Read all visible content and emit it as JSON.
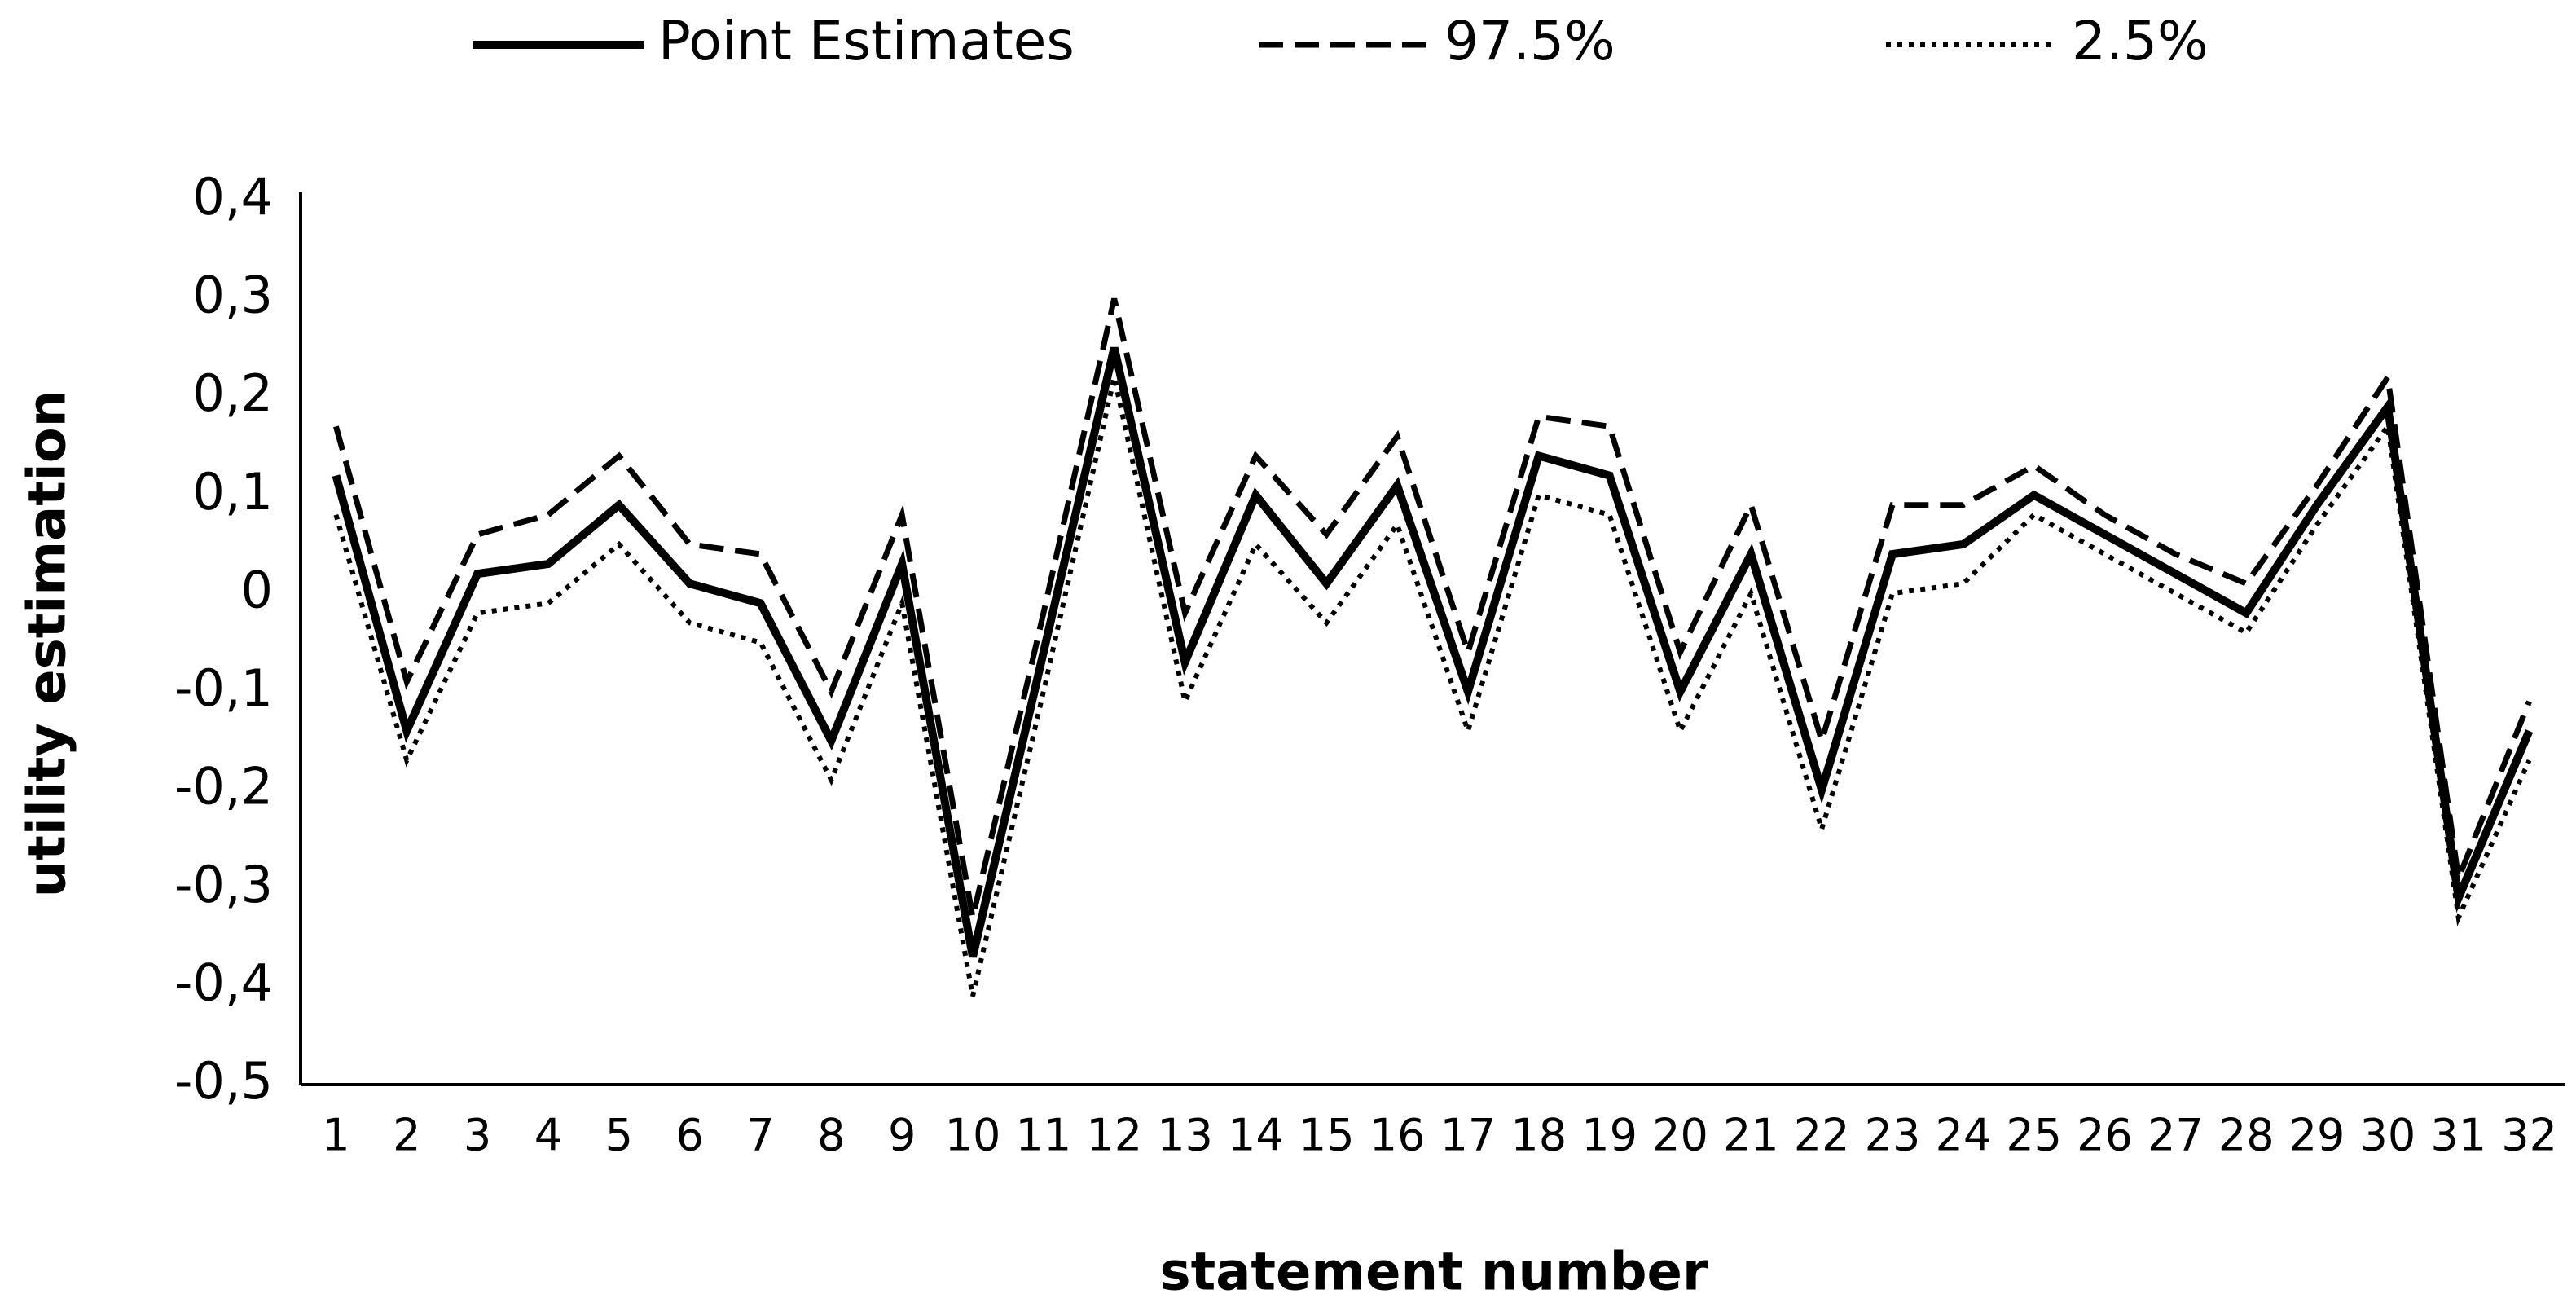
{
  "chart_data": {
    "type": "line",
    "x_label": "statement number",
    "y_label": "utility estimation",
    "categories": [
      "1",
      "2",
      "3",
      "4",
      "5",
      "6",
      "7",
      "8",
      "9",
      "10",
      "11",
      "12",
      "13",
      "14",
      "15",
      "16",
      "17",
      "18",
      "19",
      "20",
      "21",
      "22",
      "23",
      "24",
      "25",
      "26",
      "27",
      "28",
      "29",
      "30",
      "31",
      "32"
    ],
    "series": [
      {
        "name": "Point Estimates",
        "color": "#000000",
        "dash": "solid",
        "values": [
          0.12,
          -0.14,
          0.02,
          0.03,
          0.09,
          0.01,
          -0.01,
          -0.15,
          0.03,
          -0.37,
          -0.06,
          0.25,
          -0.07,
          0.1,
          0.01,
          0.11,
          -0.1,
          0.14,
          0.12,
          -0.1,
          0.04,
          -0.2,
          0.04,
          0.05,
          0.1,
          0.06,
          0.02,
          -0.02,
          0.09,
          0.19,
          -0.31,
          -0.14
        ]
      },
      {
        "name": "97.5%",
        "color": "#000000",
        "dash": "dashed",
        "values": [
          0.17,
          -0.09,
          0.06,
          0.08,
          0.14,
          0.05,
          0.04,
          -0.1,
          0.08,
          -0.33,
          -0.02,
          0.3,
          -0.02,
          0.14,
          0.06,
          0.16,
          -0.06,
          0.18,
          0.17,
          -0.06,
          0.09,
          -0.15,
          0.09,
          0.09,
          0.13,
          0.08,
          0.04,
          0.01,
          0.11,
          0.22,
          -0.29,
          -0.11
        ]
      },
      {
        "name": "2.5%",
        "color": "#000000",
        "dash": "dotted",
        "values": [
          0.08,
          -0.17,
          -0.02,
          -0.01,
          0.05,
          -0.03,
          -0.05,
          -0.19,
          -0.01,
          -0.41,
          -0.1,
          0.22,
          -0.11,
          0.05,
          -0.03,
          0.07,
          -0.14,
          0.1,
          0.08,
          -0.14,
          0.0,
          -0.24,
          0.0,
          0.01,
          0.08,
          0.04,
          0.0,
          -0.04,
          0.07,
          0.17,
          -0.33,
          -0.17
        ]
      }
    ],
    "ylim": [
      -0.5,
      0.4
    ],
    "yticks": [
      {
        "value": -0.5,
        "label": "-0,5"
      },
      {
        "value": -0.4,
        "label": "-0,4"
      },
      {
        "value": -0.3,
        "label": "-0,3"
      },
      {
        "value": -0.2,
        "label": "-0,2"
      },
      {
        "value": -0.1,
        "label": "-0,1"
      },
      0,
      {
        "value": 0.1,
        "label": "0,1"
      },
      {
        "value": 0.2,
        "label": "0,2"
      },
      {
        "value": 0.3,
        "label": "0,3"
      },
      {
        "value": 0.4,
        "label": "0,4"
      }
    ],
    "grid": false,
    "legend": "top"
  }
}
